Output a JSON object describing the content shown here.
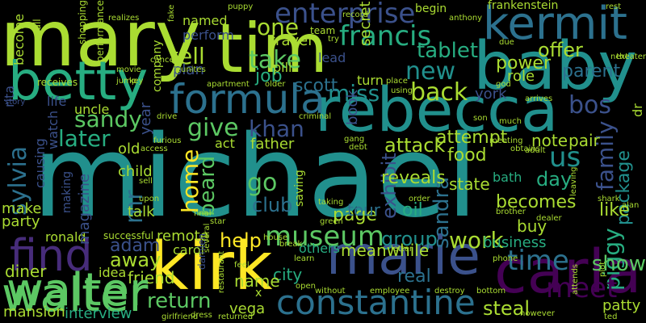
{
  "background": "#000000",
  "palette": [
    "#440154",
    "#472c7a",
    "#3b518b",
    "#2c718e",
    "#21908d",
    "#27ad81",
    "#5cc863",
    "#aadc32",
    "#fde725"
  ],
  "words": [
    {
      "text": "michael",
      "color": "#21908d"
    },
    {
      "text": "mary",
      "color": "#aadc32"
    },
    {
      "text": "tim",
      "color": "#aadc32"
    },
    {
      "text": "baby",
      "color": "#21908d"
    },
    {
      "text": "kermit",
      "color": "#2c718e"
    },
    {
      "text": "rebecca",
      "color": "#21908d"
    },
    {
      "text": "betty",
      "color": "#27ad81"
    },
    {
      "text": "marie",
      "color": "#3b518b"
    },
    {
      "text": "kirk",
      "color": "#fde725"
    },
    {
      "text": "carla",
      "color": "#440154"
    },
    {
      "text": "formula",
      "color": "#2c718e"
    },
    {
      "text": "constantine",
      "color": "#2c718e"
    },
    {
      "text": "walter",
      "color": "#5cc863"
    },
    {
      "text": "find",
      "color": "#472c7a"
    },
    {
      "text": "enterprise",
      "color": "#3b518b"
    },
    {
      "text": "francis",
      "color": "#27ad81"
    },
    {
      "text": "museum",
      "color": "#5cc863"
    },
    {
      "text": "tablet",
      "color": "#27ad81"
    },
    {
      "text": "sylvia",
      "color": "#2c718e"
    },
    {
      "text": "back",
      "color": "#aadc32"
    },
    {
      "text": "miss",
      "color": "#21908d"
    },
    {
      "text": "new",
      "color": "#21908d"
    },
    {
      "text": "take",
      "color": "#5cc863"
    },
    {
      "text": "tell",
      "color": "#aadc32"
    },
    {
      "text": "one",
      "color": "#aadc32"
    },
    {
      "text": "sandy",
      "color": "#5cc863"
    },
    {
      "text": "give",
      "color": "#5cc863"
    },
    {
      "text": "khan",
      "color": "#3b518b"
    },
    {
      "text": "later",
      "color": "#27ad81"
    },
    {
      "text": "bos",
      "color": "#3b518b"
    },
    {
      "text": "us",
      "color": "#21908d"
    },
    {
      "text": "family",
      "color": "#3b518b"
    },
    {
      "text": "package",
      "color": "#21908d"
    },
    {
      "text": "home",
      "color": "#fde725"
    },
    {
      "text": "beard",
      "color": "#5cc863"
    },
    {
      "text": "go",
      "color": "#5cc863"
    },
    {
      "text": "club",
      "color": "#2c718e"
    },
    {
      "text": "time",
      "color": "#2c718e"
    },
    {
      "text": "work",
      "color": "#aadc32"
    },
    {
      "text": "piggy",
      "color": "#27ad81"
    },
    {
      "text": "show",
      "color": "#5cc863"
    },
    {
      "text": "meet",
      "color": "#440154"
    },
    {
      "text": "steal",
      "color": "#aadc32"
    },
    {
      "text": "return",
      "color": "#5cc863"
    },
    {
      "text": "help",
      "color": "#fde725"
    },
    {
      "text": "away",
      "color": "#aadc32"
    },
    {
      "text": "adam",
      "color": "#3b518b"
    },
    {
      "text": "group",
      "color": "#21908d"
    },
    {
      "text": "offer",
      "color": "#aadc32"
    },
    {
      "text": "parent",
      "color": "#2c718e"
    },
    {
      "text": "power",
      "color": "#aadc32"
    },
    {
      "text": "job",
      "color": "#27ad81"
    },
    {
      "text": "scott",
      "color": "#2c718e"
    },
    {
      "text": "mr",
      "color": "#2c718e"
    },
    {
      "text": "attack",
      "color": "#aadc32"
    },
    {
      "text": "attempt",
      "color": "#aadc32"
    },
    {
      "text": "food",
      "color": "#aadc32"
    },
    {
      "text": "note",
      "color": "#aadc32"
    },
    {
      "text": "pair",
      "color": "#aadc32"
    },
    {
      "text": "day",
      "color": "#27ad81"
    },
    {
      "text": "becomes",
      "color": "#aadc32"
    },
    {
      "text": "like",
      "color": "#aadc32"
    },
    {
      "text": "sandra",
      "color": "#2c718e"
    },
    {
      "text": "exhibit",
      "color": "#3b518b"
    },
    {
      "text": "reveals",
      "color": "#aadc32"
    },
    {
      "text": "oil",
      "color": "#27ad81"
    },
    {
      "text": "page",
      "color": "#aadc32"
    },
    {
      "text": "meanwhile",
      "color": "#aadc32"
    },
    {
      "text": "business",
      "color": "#27ad81"
    },
    {
      "text": "buy",
      "color": "#aadc32"
    },
    {
      "text": "real",
      "color": "#2c718e"
    },
    {
      "text": "city",
      "color": "#27ad81"
    },
    {
      "text": "name",
      "color": "#aadc32"
    },
    {
      "text": "friend",
      "color": "#aadc32"
    },
    {
      "text": "walter",
      "color": "#5cc863"
    },
    {
      "text": "diner",
      "color": "#aadc32"
    },
    {
      "text": "party",
      "color": "#aadc32"
    },
    {
      "text": "make",
      "color": "#aadc32"
    },
    {
      "text": "ronald",
      "color": "#aadc32"
    },
    {
      "text": "mansion",
      "color": "#aadc32"
    },
    {
      "text": "interview",
      "color": "#27ad81"
    },
    {
      "text": "vega",
      "color": "#aadc32"
    },
    {
      "text": "patty",
      "color": "#aadc32"
    },
    {
      "text": "child",
      "color": "#aadc32"
    },
    {
      "text": "talk",
      "color": "#aadc32"
    },
    {
      "text": "old",
      "color": "#aadc32"
    },
    {
      "text": "father",
      "color": "#aadc32"
    },
    {
      "text": "act",
      "color": "#aadc32"
    },
    {
      "text": "remote",
      "color": "#aadc32"
    },
    {
      "text": "carol",
      "color": "#aadc32"
    },
    {
      "text": "idea",
      "color": "#aadc32"
    },
    {
      "text": "others",
      "color": "#27ad81"
    },
    {
      "text": "tour",
      "color": "#2c718e"
    },
    {
      "text": "state",
      "color": "#aadc32"
    },
    {
      "text": "bath",
      "color": "#27ad81"
    },
    {
      "text": "book",
      "color": "#3b518b"
    },
    {
      "text": "turn",
      "color": "#aadc32"
    },
    {
      "text": "role",
      "color": "#aadc32"
    },
    {
      "text": "york",
      "color": "#3b518b"
    },
    {
      "text": "plan",
      "color": "#3b518b"
    },
    {
      "text": "perform",
      "color": "#3b518b"
    },
    {
      "text": "named",
      "color": "#aadc32"
    },
    {
      "text": "travel",
      "color": "#aadc32"
    },
    {
      "text": "pill",
      "color": "#aadc32"
    },
    {
      "text": "lead",
      "color": "#3b518b"
    },
    {
      "text": "secret",
      "color": "#aadc32"
    },
    {
      "text": "begin",
      "color": "#aadc32"
    },
    {
      "text": "frankenstein",
      "color": "#aadc32"
    },
    {
      "text": "uncle",
      "color": "#aadc32"
    },
    {
      "text": "life",
      "color": "#3b518b"
    },
    {
      "text": "watch",
      "color": "#3b518b"
    },
    {
      "text": "causing",
      "color": "#3b518b"
    },
    {
      "text": "become",
      "color": "#aadc32"
    },
    {
      "text": "receives",
      "color": "#aadc32"
    },
    {
      "text": "rita",
      "color": "#3b518b"
    },
    {
      "text": "company",
      "color": "#aadc32"
    },
    {
      "text": "year",
      "color": "#3b518b"
    },
    {
      "text": "magazine",
      "color": "#3b518b"
    },
    {
      "text": "making",
      "color": "#3b518b"
    },
    {
      "text": "saving",
      "color": "#aadc32"
    },
    {
      "text": "successful",
      "color": "#aadc32"
    },
    {
      "text": "damien",
      "color": "#3b518b"
    },
    {
      "text": "dr",
      "color": "#aadc32"
    },
    {
      "text": "team",
      "color": "#aadc32"
    },
    {
      "text": "call",
      "color": "#aadc32"
    },
    {
      "text": "shopping",
      "color": "#aadc32"
    },
    {
      "text": "performance",
      "color": "#aadc32"
    },
    {
      "text": "realizes",
      "color": "#aadc32"
    },
    {
      "text": "fake",
      "color": "#aadc32"
    },
    {
      "text": "record",
      "color": "#aadc32"
    },
    {
      "text": "puppy",
      "color": "#aadc32"
    },
    {
      "text": "anthony",
      "color": "#aadc32"
    },
    {
      "text": "rest",
      "color": "#aadc32"
    },
    {
      "text": "next",
      "color": "#aadc32"
    },
    {
      "text": "theater",
      "color": "#aadc32"
    },
    {
      "text": "due",
      "color": "#aadc32"
    },
    {
      "text": "try",
      "color": "#aadc32"
    },
    {
      "text": "cancer",
      "color": "#aadc32"
    },
    {
      "text": "movie",
      "color": "#aadc32"
    },
    {
      "text": "jump",
      "color": "#aadc32"
    },
    {
      "text": "key",
      "color": "#aadc32"
    },
    {
      "text": "reunites",
      "color": "#aadc32"
    },
    {
      "text": "apartment",
      "color": "#aadc32"
    },
    {
      "text": "older",
      "color": "#aadc32"
    },
    {
      "text": "place",
      "color": "#aadc32"
    },
    {
      "text": "using",
      "color": "#aadc32"
    },
    {
      "text": "god",
      "color": "#aadc32"
    },
    {
      "text": "arrives",
      "color": "#aadc32"
    },
    {
      "text": "story",
      "color": "#3b518b"
    },
    {
      "text": "drive",
      "color": "#aadc32"
    },
    {
      "text": "criminal",
      "color": "#aadc32"
    },
    {
      "text": "son",
      "color": "#aadc32"
    },
    {
      "text": "much",
      "color": "#aadc32"
    },
    {
      "text": "furious",
      "color": "#aadc32"
    },
    {
      "text": "gang",
      "color": "#aadc32"
    },
    {
      "text": "debt",
      "color": "#aadc32"
    },
    {
      "text": "meeting",
      "color": "#aadc32"
    },
    {
      "text": "obtains",
      "color": "#aadc32"
    },
    {
      "text": "adult",
      "color": "#aadc32"
    },
    {
      "text": "access",
      "color": "#aadc32"
    },
    {
      "text": "sell",
      "color": "#aadc32"
    },
    {
      "text": "upon",
      "color": "#aadc32"
    },
    {
      "text": "final",
      "color": "#aadc32"
    },
    {
      "text": "star",
      "color": "#aadc32"
    },
    {
      "text": "taking",
      "color": "#aadc32"
    },
    {
      "text": "order",
      "color": "#aadc32"
    },
    {
      "text": "shark",
      "color": "#aadc32"
    },
    {
      "text": "brother",
      "color": "#aadc32"
    },
    {
      "text": "dealer",
      "color": "#aadc32"
    },
    {
      "text": "leaving",
      "color": "#aadc32"
    },
    {
      "text": "alan",
      "color": "#aadc32"
    },
    {
      "text": "break",
      "color": "#aadc32"
    },
    {
      "text": "green",
      "color": "#aadc32"
    },
    {
      "text": "house",
      "color": "#aadc32"
    },
    {
      "text": "letter",
      "color": "#aadc32"
    },
    {
      "text": "learn",
      "color": "#aadc32"
    },
    {
      "text": "several",
      "color": "#aadc32"
    },
    {
      "text": "feel",
      "color": "#aadc32"
    },
    {
      "text": "restaurant",
      "color": "#aadc32"
    },
    {
      "text": "open",
      "color": "#aadc32"
    },
    {
      "text": "without",
      "color": "#aadc32"
    },
    {
      "text": "employee",
      "color": "#aadc32"
    },
    {
      "text": "destroy",
      "color": "#aadc32"
    },
    {
      "text": "bottom",
      "color": "#aadc32"
    },
    {
      "text": "phone",
      "color": "#aadc32"
    },
    {
      "text": "attends",
      "color": "#aadc32"
    },
    {
      "text": "plot",
      "color": "#aadc32"
    },
    {
      "text": "however",
      "color": "#aadc32"
    },
    {
      "text": "ted",
      "color": "#aadc32"
    },
    {
      "text": "girlfriend",
      "color": "#aadc32"
    },
    {
      "text": "dress",
      "color": "#aadc32"
    },
    {
      "text": "returned",
      "color": "#aadc32"
    },
    {
      "text": "x",
      "color": "#aadc32"
    }
  ]
}
